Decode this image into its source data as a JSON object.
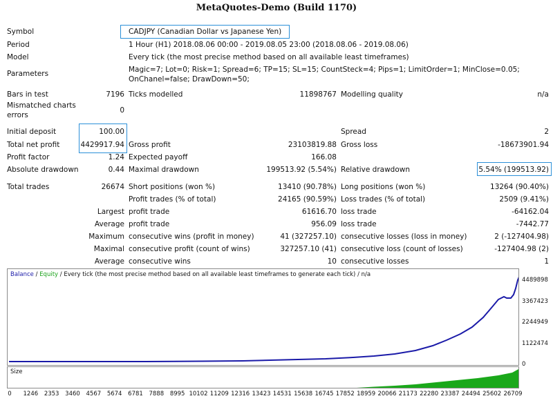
{
  "title": "MetaQuotes-Demo (Build 1170)",
  "info": {
    "symbol_label": "Symbol",
    "symbol_value": "CADJPY (Canadian Dollar vs Japanese Yen)",
    "period_label": "Period",
    "period_value": "1 Hour (H1) 2018.08.06 00:00 - 2019.08.05 23:00 (2018.08.06 - 2019.08.06)",
    "model_label": "Model",
    "model_value": "Every tick (the most precise method based on all available least timeframes)",
    "params_label": "Parameters",
    "params_line1": "Magic=7; Lot=0; Risk=1; Spread=6; TP=15; SL=15; CountSteck=4; Pips=1; LimitOrder=1; MinClose=0.05;",
    "params_line2": "OnChanel=false; DrawDown=50;"
  },
  "stats": {
    "bars_label": "Bars in test",
    "bars_value": "7196",
    "ticks_label": "Ticks modelled",
    "ticks_value": "11898767",
    "quality_label": "Modelling quality",
    "quality_value": "n/a",
    "mismatch_label1": "Mismatched charts",
    "mismatch_label2": "errors",
    "mismatch_value": "0",
    "deposit_label": "Initial deposit",
    "deposit_value": "100.00",
    "spread_label": "Spread",
    "spread_value": "2",
    "netprofit_label": "Total net profit",
    "netprofit_value": "4429917.94",
    "grossprofit_label": "Gross profit",
    "grossprofit_value": "23103819.88",
    "grossloss_label": "Gross loss",
    "grossloss_value": "-18673901.94",
    "pf_label": "Profit factor",
    "pf_value": "1.24",
    "ep_label": "Expected payoff",
    "ep_value": "166.08",
    "absdd_label": "Absolute drawdown",
    "absdd_value": "0.44",
    "maxdd_label": "Maximal drawdown",
    "maxdd_value": "199513.92 (5.54%)",
    "reldd_label": "Relative drawdown",
    "reldd_value": "5.54% (199513.92)",
    "trades_label": "Total trades",
    "trades_value": "26674",
    "short_label": "Short positions (won %)",
    "short_value": "13410 (90.78%)",
    "long_label": "Long positions (won %)",
    "long_value": "13264 (90.40%)",
    "ptrades_label": "Profit trades (% of total)",
    "ptrades_value": "24165 (90.59%)",
    "ltrades_label": "Loss trades (% of total)",
    "ltrades_value": "2509 (9.41%)",
    "largest_label": "Largest",
    "largest_p_label": "profit trade",
    "largest_p_value": "61616.70",
    "largest_l_label": "loss trade",
    "largest_l_value": "-64162.04",
    "average_label": "Average",
    "average_p_label": "profit trade",
    "average_p_value": "956.09",
    "average_l_label": "loss trade",
    "average_l_value": "-7442.77",
    "maximum_label": "Maximum",
    "maximum_p_label": "consecutive wins (profit in money)",
    "maximum_p_value": "41 (327257.10)",
    "maximum_l_label": "consecutive losses (loss in money)",
    "maximum_l_value": "2 (-127404.98)",
    "maximal_label": "Maximal",
    "maximal_p_label": "consecutive profit (count of wins)",
    "maximal_p_value": "327257.10 (41)",
    "maximal_l_label": "consecutive loss (count of losses)",
    "maximal_l_value": "-127404.98 (2)",
    "avg2_label": "Average",
    "avg2_p_label": "consecutive wins",
    "avg2_p_value": "10",
    "avg2_l_label": "consecutive losses",
    "avg2_l_value": "1"
  },
  "chart": {
    "legend_balance": "Balance",
    "legend_sep": " / ",
    "legend_equity": "Equity",
    "legend_rest": " / Every tick (the most precise method based on all available least timeframes to generate each tick) / n/a",
    "size_label": "Size",
    "balance_color": "#1a1aa8",
    "equity_color": "#1ca31c",
    "size_color": "#1aa81a",
    "y_ticks": [
      "4489898",
      "3367423",
      "2244949",
      "1122474",
      "0"
    ],
    "x_ticks": [
      "0",
      "1246",
      "2353",
      "3460",
      "4567",
      "5674",
      "6781",
      "7888",
      "8995",
      "10102",
      "11209",
      "12316",
      "13423",
      "14531",
      "15638",
      "16745",
      "17852",
      "18959",
      "20066",
      "21173",
      "22280",
      "23387",
      "24494",
      "25602",
      "26709"
    ]
  }
}
